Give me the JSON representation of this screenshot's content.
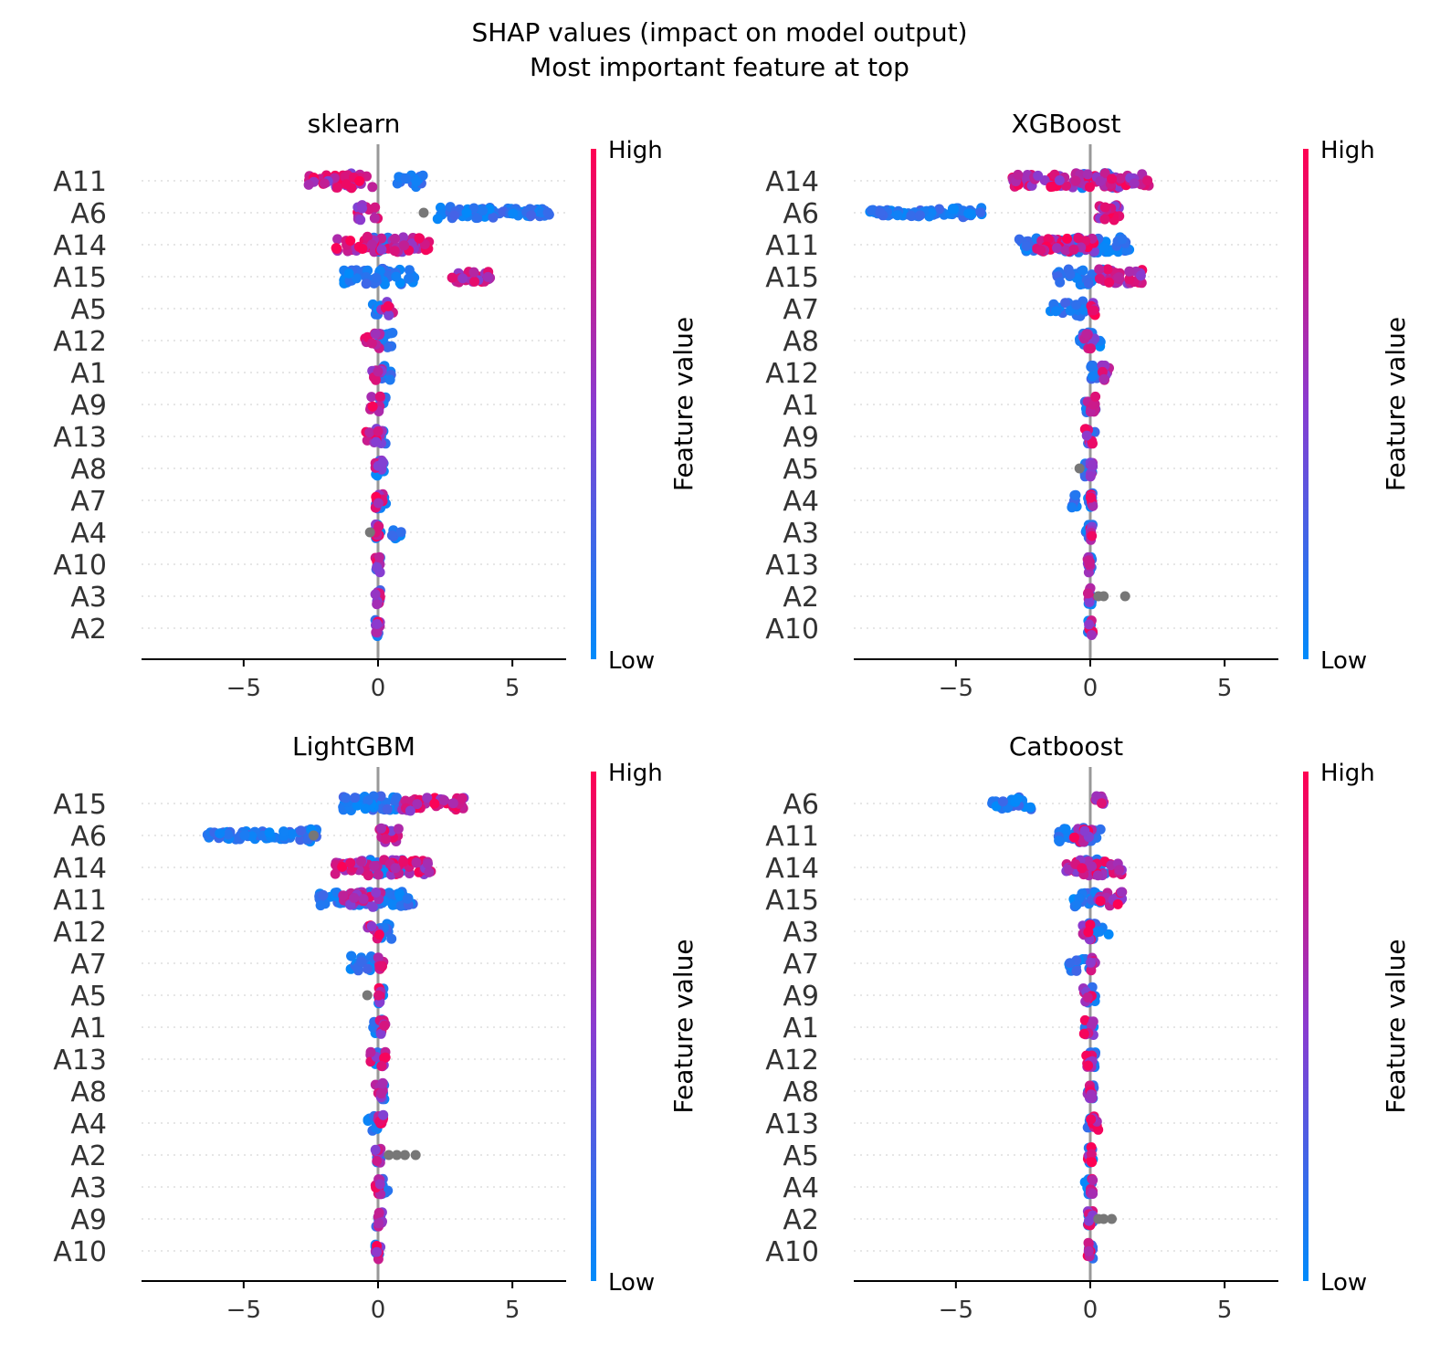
{
  "figure": {
    "title_line1": "SHAP values (impact on model output)",
    "title_line2": "Most important feature at top"
  },
  "colorbar": {
    "high_label": "High",
    "low_label": "Low",
    "axis_label": "Feature value",
    "low_color": "#008bfb",
    "mid_color": "#8a3bd0",
    "high_color": "#ff0052"
  },
  "colors": {
    "missing_point": "#777777",
    "zero_line": "#999999",
    "grid": "#cccccc"
  },
  "chart_data": [
    {
      "type": "scatter",
      "subtype": "shap-beeswarm",
      "title": "sklearn",
      "xlim": [
        -8.8,
        7.0
      ],
      "xticks": [
        -5,
        0,
        5
      ],
      "xtick_labels": [
        "−5",
        "0",
        "5"
      ],
      "features": [
        {
          "name": "A11",
          "low": [
            [
              0.6,
              1.7
            ]
          ],
          "high": [
            [
              -2.6,
              -0.2
            ]
          ],
          "gray": []
        },
        {
          "name": "A6",
          "low": [
            [
              2.2,
              6.4
            ]
          ],
          "high": [
            [
              -0.8,
              0.0
            ]
          ],
          "gray": [
            1.7
          ]
        },
        {
          "name": "A14",
          "low": [
            [
              -0.5,
              0.6
            ]
          ],
          "high": [
            [
              -1.6,
              1.9
            ]
          ],
          "gray": []
        },
        {
          "name": "A15",
          "low": [
            [
              -1.3,
              1.6
            ]
          ],
          "high": [
            [
              2.7,
              4.2
            ]
          ],
          "gray": []
        },
        {
          "name": "A5",
          "low": [
            [
              -0.2,
              0.1
            ]
          ],
          "high": [
            [
              0.1,
              0.6
            ]
          ],
          "gray": []
        },
        {
          "name": "A12",
          "low": [
            [
              0.0,
              0.6
            ]
          ],
          "high": [
            [
              -0.5,
              0.1
            ]
          ],
          "gray": []
        },
        {
          "name": "A1",
          "low": [
            [
              0.0,
              0.5
            ]
          ],
          "high": [
            [
              -0.3,
              0.2
            ]
          ],
          "gray": []
        },
        {
          "name": "A9",
          "low": [
            [
              0.0,
              0.3
            ]
          ],
          "high": [
            [
              -0.3,
              0.1
            ]
          ],
          "gray": []
        },
        {
          "name": "A13",
          "low": [
            [
              -0.1,
              0.3
            ]
          ],
          "high": [
            [
              -0.5,
              0.2
            ]
          ],
          "gray": []
        },
        {
          "name": "A8",
          "low": [
            [
              -0.1,
              0.3
            ]
          ],
          "high": [
            [
              -0.1,
              0.2
            ]
          ],
          "gray": []
        },
        {
          "name": "A7",
          "low": [
            [
              -0.1,
              0.3
            ]
          ],
          "high": [
            [
              -0.1,
              0.2
            ]
          ],
          "gray": []
        },
        {
          "name": "A4",
          "low": [
            [
              -0.1,
              0.1
            ],
            [
              0.5,
              0.9
            ]
          ],
          "high": [
            [
              -0.1,
              0.1
            ]
          ],
          "gray": [
            -0.3
          ]
        },
        {
          "name": "A10",
          "low": [
            [
              -0.1,
              0.1
            ]
          ],
          "high": [
            [
              -0.1,
              0.1
            ]
          ],
          "gray": []
        },
        {
          "name": "A3",
          "low": [
            [
              -0.1,
              0.1
            ]
          ],
          "high": [
            [
              -0.1,
              0.1
            ]
          ],
          "gray": []
        },
        {
          "name": "A2",
          "low": [
            [
              -0.1,
              0.1
            ]
          ],
          "high": [
            [
              -0.1,
              0.1
            ]
          ],
          "gray": []
        }
      ]
    },
    {
      "type": "scatter",
      "subtype": "shap-beeswarm",
      "title": "XGBoost",
      "xlim": [
        -8.8,
        7.0
      ],
      "xticks": [
        -5,
        0,
        5
      ],
      "xtick_labels": [
        "−5",
        "0",
        "5"
      ],
      "features": [
        {
          "name": "A14",
          "low": [
            [
              -0.4,
              1.0
            ]
          ],
          "high": [
            [
              -2.9,
              2.2
            ]
          ],
          "gray": []
        },
        {
          "name": "A6",
          "low": [
            [
              -8.2,
              -4.0
            ]
          ],
          "high": [
            [
              0.2,
              1.1
            ]
          ],
          "gray": []
        },
        {
          "name": "A11",
          "low": [
            [
              -2.7,
              1.5
            ]
          ],
          "high": [
            [
              -2.0,
              0.2
            ]
          ],
          "gray": []
        },
        {
          "name": "A15",
          "low": [
            [
              -1.3,
              0.8
            ]
          ],
          "high": [
            [
              0.3,
              2.0
            ]
          ],
          "gray": []
        },
        {
          "name": "A7",
          "low": [
            [
              -1.5,
              -0.2
            ]
          ],
          "high": [
            [
              0.0,
              0.2
            ]
          ],
          "gray": []
        },
        {
          "name": "A8",
          "low": [
            [
              -0.4,
              0.4
            ]
          ],
          "high": [
            [
              -0.3,
              0.2
            ]
          ],
          "gray": []
        },
        {
          "name": "A12",
          "low": [
            [
              -0.2,
              0.4
            ]
          ],
          "high": [
            [
              0.2,
              0.7
            ]
          ],
          "gray": []
        },
        {
          "name": "A1",
          "low": [
            [
              -0.2,
              0.3
            ]
          ],
          "high": [
            [
              -0.1,
              0.2
            ]
          ],
          "gray": []
        },
        {
          "name": "A9",
          "low": [
            [
              -0.2,
              0.2
            ]
          ],
          "high": [
            [
              -0.2,
              0.1
            ]
          ],
          "gray": []
        },
        {
          "name": "A5",
          "low": [
            [
              -0.2,
              0.1
            ]
          ],
          "high": [
            [
              0.0,
              0.1
            ]
          ],
          "gray": [
            -0.4
          ]
        },
        {
          "name": "A4",
          "low": [
            [
              -0.7,
              -0.5
            ],
            [
              -0.1,
              0.1
            ]
          ],
          "high": [
            [
              0.0,
              0.1
            ]
          ],
          "gray": []
        },
        {
          "name": "A3",
          "low": [
            [
              -0.2,
              0.1
            ]
          ],
          "high": [
            [
              0.0,
              0.1
            ]
          ],
          "gray": []
        },
        {
          "name": "A13",
          "low": [
            [
              -0.1,
              0.1
            ]
          ],
          "high": [
            [
              -0.1,
              0.0
            ]
          ],
          "gray": []
        },
        {
          "name": "A2",
          "low": [
            [
              -0.1,
              0.1
            ]
          ],
          "high": [
            [
              -0.1,
              0.1
            ]
          ],
          "gray": [
            0.3,
            0.5,
            1.3
          ]
        },
        {
          "name": "A10",
          "low": [
            [
              -0.1,
              0.1
            ]
          ],
          "high": [
            [
              -0.1,
              0.1
            ]
          ],
          "gray": []
        }
      ]
    },
    {
      "type": "scatter",
      "subtype": "shap-beeswarm",
      "title": "LightGBM",
      "xlim": [
        -8.8,
        7.0
      ],
      "xticks": [
        -5,
        0,
        5
      ],
      "xtick_labels": [
        "−5",
        "0",
        "5"
      ],
      "features": [
        {
          "name": "A15",
          "low": [
            [
              -1.5,
              0.8
            ]
          ],
          "high": [
            [
              0.9,
              3.2
            ]
          ],
          "gray": []
        },
        {
          "name": "A6",
          "low": [
            [
              -6.4,
              -2.2
            ]
          ],
          "high": [
            [
              0.0,
              0.8
            ]
          ],
          "gray": [
            -2.4
          ]
        },
        {
          "name": "A14",
          "low": [
            [
              -0.3,
              1.0
            ]
          ],
          "high": [
            [
              -1.6,
              2.0
            ]
          ],
          "gray": []
        },
        {
          "name": "A11",
          "low": [
            [
              -2.2,
              1.3
            ]
          ],
          "high": [
            [
              -1.3,
              0.1
            ]
          ],
          "gray": []
        },
        {
          "name": "A12",
          "low": [
            [
              0.0,
              0.6
            ]
          ],
          "high": [
            [
              -0.4,
              0.1
            ]
          ],
          "gray": []
        },
        {
          "name": "A7",
          "low": [
            [
              -1.1,
              0.0
            ]
          ],
          "high": [
            [
              0.0,
              0.2
            ]
          ],
          "gray": []
        },
        {
          "name": "A5",
          "low": [
            [
              0.0,
              0.2
            ]
          ],
          "high": [
            [
              0.0,
              0.1
            ]
          ],
          "gray": [
            -0.4
          ]
        },
        {
          "name": "A1",
          "low": [
            [
              -0.2,
              0.2
            ]
          ],
          "high": [
            [
              0.0,
              0.3
            ]
          ],
          "gray": []
        },
        {
          "name": "A13",
          "low": [
            [
              -0.1,
              0.2
            ]
          ],
          "high": [
            [
              -0.3,
              0.3
            ]
          ],
          "gray": []
        },
        {
          "name": "A8",
          "low": [
            [
              -0.1,
              0.3
            ]
          ],
          "high": [
            [
              -0.1,
              0.2
            ]
          ],
          "gray": []
        },
        {
          "name": "A4",
          "low": [
            [
              -0.5,
              0.0
            ]
          ],
          "high": [
            [
              0.0,
              0.2
            ]
          ],
          "gray": []
        },
        {
          "name": "A2",
          "low": [
            [
              -0.1,
              0.1
            ]
          ],
          "high": [
            [
              -0.1,
              0.1
            ]
          ],
          "gray": [
            0.4,
            0.7,
            1.0,
            1.4
          ]
        },
        {
          "name": "A3",
          "low": [
            [
              -0.1,
              0.4
            ]
          ],
          "high": [
            [
              -0.1,
              0.1
            ]
          ],
          "gray": []
        },
        {
          "name": "A9",
          "low": [
            [
              -0.1,
              0.1
            ]
          ],
          "high": [
            [
              0.0,
              0.2
            ]
          ],
          "gray": []
        },
        {
          "name": "A10",
          "low": [
            [
              -0.1,
              0.1
            ]
          ],
          "high": [
            [
              -0.1,
              0.1
            ]
          ],
          "gray": []
        }
      ]
    },
    {
      "type": "scatter",
      "subtype": "shap-beeswarm",
      "title": "Catboost",
      "xlim": [
        -8.8,
        7.0
      ],
      "xticks": [
        -5,
        0,
        5
      ],
      "xtick_labels": [
        "−5",
        "0",
        "5"
      ],
      "features": [
        {
          "name": "A6",
          "low": [
            [
              -3.7,
              -2.2
            ]
          ],
          "high": [
            [
              0.2,
              0.5
            ]
          ],
          "gray": []
        },
        {
          "name": "A11",
          "low": [
            [
              -1.2,
              0.4
            ]
          ],
          "high": [
            [
              -0.6,
              0.1
            ]
          ],
          "gray": []
        },
        {
          "name": "A14",
          "low": [
            [
              -0.3,
              0.6
            ]
          ],
          "high": [
            [
              -0.9,
              1.2
            ]
          ],
          "gray": []
        },
        {
          "name": "A15",
          "low": [
            [
              -0.7,
              0.4
            ]
          ],
          "high": [
            [
              0.3,
              1.2
            ]
          ],
          "gray": []
        },
        {
          "name": "A3",
          "low": [
            [
              -0.1,
              0.7
            ]
          ],
          "high": [
            [
              -0.3,
              0.1
            ]
          ],
          "gray": []
        },
        {
          "name": "A7",
          "low": [
            [
              -0.8,
              0.0
            ]
          ],
          "high": [
            [
              0.0,
              0.2
            ]
          ],
          "gray": []
        },
        {
          "name": "A9",
          "low": [
            [
              -0.1,
              0.2
            ]
          ],
          "high": [
            [
              -0.3,
              0.1
            ]
          ],
          "gray": []
        },
        {
          "name": "A1",
          "low": [
            [
              -0.2,
              0.2
            ]
          ],
          "high": [
            [
              -0.3,
              0.2
            ]
          ],
          "gray": []
        },
        {
          "name": "A12",
          "low": [
            [
              -0.1,
              0.2
            ]
          ],
          "high": [
            [
              -0.3,
              0.1
            ]
          ],
          "gray": []
        },
        {
          "name": "A8",
          "low": [
            [
              -0.1,
              0.2
            ]
          ],
          "high": [
            [
              -0.1,
              0.1
            ]
          ],
          "gray": []
        },
        {
          "name": "A13",
          "low": [
            [
              -0.1,
              0.1
            ]
          ],
          "high": [
            [
              0.0,
              0.3
            ]
          ],
          "gray": []
        },
        {
          "name": "A5",
          "low": [
            [
              -0.1,
              0.1
            ]
          ],
          "high": [
            [
              -0.1,
              0.1
            ]
          ],
          "gray": []
        },
        {
          "name": "A4",
          "low": [
            [
              -0.2,
              0.1
            ]
          ],
          "high": [
            [
              0.0,
              0.1
            ]
          ],
          "gray": []
        },
        {
          "name": "A2",
          "low": [
            [
              -0.1,
              0.1
            ]
          ],
          "high": [
            [
              -0.1,
              0.1
            ]
          ],
          "gray": [
            0.3,
            0.5,
            0.8
          ]
        },
        {
          "name": "A10",
          "low": [
            [
              -0.1,
              0.1
            ]
          ],
          "high": [
            [
              -0.1,
              0.1
            ]
          ],
          "gray": []
        }
      ]
    }
  ]
}
